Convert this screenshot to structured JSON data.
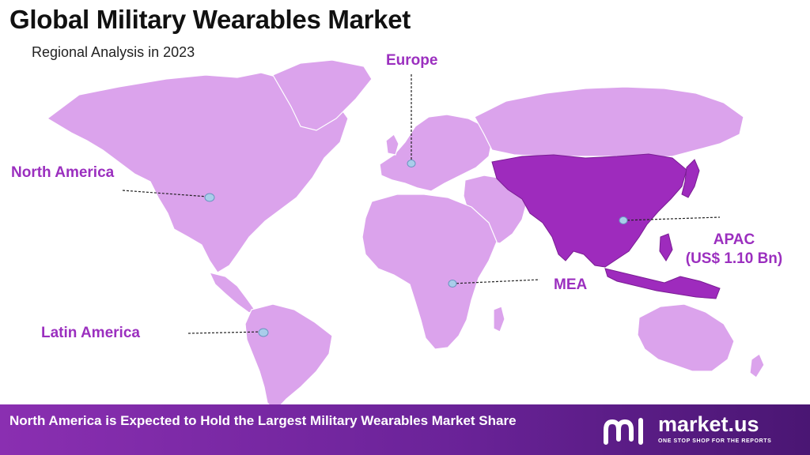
{
  "header": {
    "title": "Global Military Wearables Market",
    "subtitle": "Regional Analysis in 2023"
  },
  "regions": {
    "north_america": "North America",
    "europe": "Europe",
    "apac": "APAC",
    "apac_value": "(US$ 1.10 Bn)",
    "mea": "MEA",
    "latin_america": "Latin America"
  },
  "map": {
    "highlighted_region": "APAC",
    "colors": {
      "land": "#dba3ec",
      "highlight": "#9e2bbd",
      "highlight_border": "#7a1d94",
      "marker": "#a9cdea",
      "accent_text": "#9b2fbf"
    }
  },
  "footer": {
    "text": "North America is Expected to Hold the Largest Military Wearables Market Share"
  },
  "brand": {
    "name": "market.us",
    "tagline": "ONE STOP SHOP FOR THE REPORTS",
    "icon": "market-us-logo-icon"
  }
}
